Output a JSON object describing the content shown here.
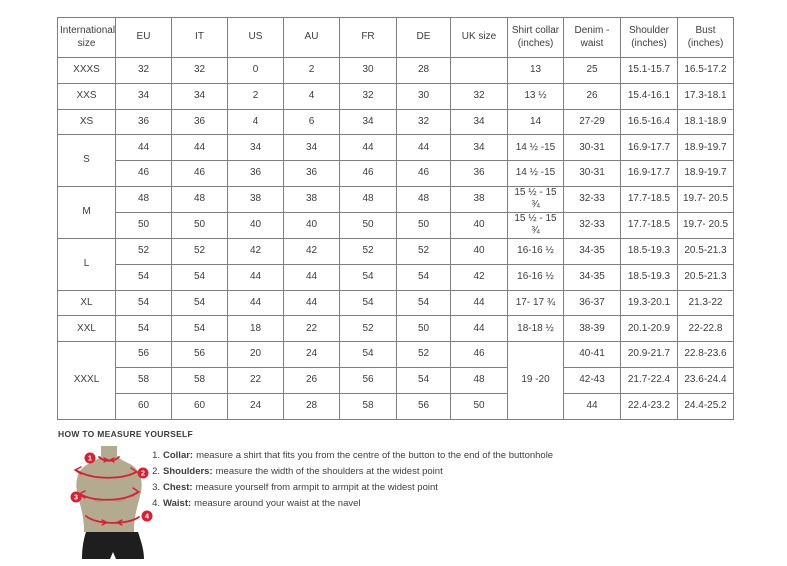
{
  "colors": {
    "accent_red": "#da1f33",
    "mannequin_tan": "#b3ab90",
    "shorts_black": "#1e1e1e",
    "table_border": "#7f7f7f",
    "text": "#3d3d3d"
  },
  "table": {
    "headers": [
      "International size",
      "EU",
      "IT",
      "US",
      "AU",
      "FR",
      "DE",
      "UK size",
      "Shirt collar (inches)",
      "Denim - waist",
      "Shoulder (inches)",
      "Bust (inches)"
    ],
    "rows": [
      {
        "cells": [
          {
            "t": "XXXS"
          },
          {
            "t": "32"
          },
          {
            "t": "32"
          },
          {
            "t": "0"
          },
          {
            "t": "2"
          },
          {
            "t": "30"
          },
          {
            "t": "28"
          },
          {
            "t": ""
          },
          {
            "t": "13"
          },
          {
            "t": "25"
          },
          {
            "t": "15.1-15.7"
          },
          {
            "t": "16.5-17.2"
          }
        ]
      },
      {
        "cells": [
          {
            "t": "XXS"
          },
          {
            "t": "34"
          },
          {
            "t": "34"
          },
          {
            "t": "2"
          },
          {
            "t": "4"
          },
          {
            "t": "32"
          },
          {
            "t": "30"
          },
          {
            "t": "32"
          },
          {
            "t": "13 ½"
          },
          {
            "t": "26"
          },
          {
            "t": "15.4-16.1"
          },
          {
            "t": "17.3-18.1"
          }
        ]
      },
      {
        "cells": [
          {
            "t": "XS"
          },
          {
            "t": "36"
          },
          {
            "t": "36"
          },
          {
            "t": "4"
          },
          {
            "t": "6"
          },
          {
            "t": "34"
          },
          {
            "t": "32"
          },
          {
            "t": "34"
          },
          {
            "t": "14"
          },
          {
            "t": "27-29"
          },
          {
            "t": "16.5-16.4"
          },
          {
            "t": "18.1-18.9"
          }
        ]
      },
      {
        "cells": [
          {
            "t": "S",
            "rs": 2
          },
          {
            "t": "44"
          },
          {
            "t": "44"
          },
          {
            "t": "34"
          },
          {
            "t": "34"
          },
          {
            "t": "44"
          },
          {
            "t": "44"
          },
          {
            "t": "34"
          },
          {
            "t": "14 ½ -15"
          },
          {
            "t": "30-31"
          },
          {
            "t": "16.9-17.7"
          },
          {
            "t": "18.9-19.7"
          }
        ]
      },
      {
        "cells": [
          {
            "t": "46"
          },
          {
            "t": "46"
          },
          {
            "t": "36"
          },
          {
            "t": "36"
          },
          {
            "t": "46"
          },
          {
            "t": "46"
          },
          {
            "t": "36"
          },
          {
            "t": "14 ½ -15"
          },
          {
            "t": "30-31"
          },
          {
            "t": "16.9-17.7"
          },
          {
            "t": "18.9-19.7"
          }
        ]
      },
      {
        "cells": [
          {
            "t": "M",
            "rs": 2
          },
          {
            "t": "48"
          },
          {
            "t": "48"
          },
          {
            "t": "38"
          },
          {
            "t": "38"
          },
          {
            "t": "48"
          },
          {
            "t": "48"
          },
          {
            "t": "38"
          },
          {
            "t": "15 ½ - 15 ¾"
          },
          {
            "t": "32-33"
          },
          {
            "t": "17.7-18.5"
          },
          {
            "t": "19.7- 20.5"
          }
        ]
      },
      {
        "cells": [
          {
            "t": "50"
          },
          {
            "t": "50"
          },
          {
            "t": "40"
          },
          {
            "t": "40"
          },
          {
            "t": "50"
          },
          {
            "t": "50"
          },
          {
            "t": "40"
          },
          {
            "t": "15 ½ - 15 ¾"
          },
          {
            "t": "32-33"
          },
          {
            "t": "17.7-18.5"
          },
          {
            "t": "19.7- 20.5"
          }
        ]
      },
      {
        "cells": [
          {
            "t": "L",
            "rs": 2
          },
          {
            "t": "52"
          },
          {
            "t": "52"
          },
          {
            "t": "42"
          },
          {
            "t": "42"
          },
          {
            "t": "52"
          },
          {
            "t": "52"
          },
          {
            "t": "40"
          },
          {
            "t": "16-16 ½"
          },
          {
            "t": "34-35"
          },
          {
            "t": "18.5-19.3"
          },
          {
            "t": "20.5-21.3"
          }
        ]
      },
      {
        "cells": [
          {
            "t": "54"
          },
          {
            "t": "54"
          },
          {
            "t": "44"
          },
          {
            "t": "44"
          },
          {
            "t": "54"
          },
          {
            "t": "54"
          },
          {
            "t": "42"
          },
          {
            "t": "16-16 ½"
          },
          {
            "t": "34-35"
          },
          {
            "t": "18.5-19.3"
          },
          {
            "t": "20.5-21.3"
          }
        ]
      },
      {
        "cells": [
          {
            "t": "XL"
          },
          {
            "t": "54"
          },
          {
            "t": "54"
          },
          {
            "t": "44"
          },
          {
            "t": "44"
          },
          {
            "t": "54"
          },
          {
            "t": "54"
          },
          {
            "t": "44"
          },
          {
            "t": "17- 17 ¾"
          },
          {
            "t": "36-37"
          },
          {
            "t": "19.3-20.1"
          },
          {
            "t": "21.3-22"
          }
        ]
      },
      {
        "cells": [
          {
            "t": "XXL"
          },
          {
            "t": "54"
          },
          {
            "t": "54"
          },
          {
            "t": "18"
          },
          {
            "t": "22"
          },
          {
            "t": "52"
          },
          {
            "t": "50"
          },
          {
            "t": "44"
          },
          {
            "t": "18-18 ½"
          },
          {
            "t": "38-39"
          },
          {
            "t": "20.1-20.9"
          },
          {
            "t": "22-22.8"
          }
        ]
      },
      {
        "cells": [
          {
            "t": "XXXL",
            "rs": 3
          },
          {
            "t": "56"
          },
          {
            "t": "56"
          },
          {
            "t": "20"
          },
          {
            "t": "24"
          },
          {
            "t": "54"
          },
          {
            "t": "52"
          },
          {
            "t": "46"
          },
          {
            "t": "19 -20",
            "rs": 3
          },
          {
            "t": "40-41"
          },
          {
            "t": "20.9-21.7"
          },
          {
            "t": "22.8-23.6"
          }
        ]
      },
      {
        "cells": [
          {
            "t": "58"
          },
          {
            "t": "58"
          },
          {
            "t": "22"
          },
          {
            "t": "26"
          },
          {
            "t": "56"
          },
          {
            "t": "54"
          },
          {
            "t": "48"
          },
          {
            "t": "42-43"
          },
          {
            "t": "21.7-22.4"
          },
          {
            "t": "23.6-24.4"
          }
        ]
      },
      {
        "cells": [
          {
            "t": "60"
          },
          {
            "t": "60"
          },
          {
            "t": "24"
          },
          {
            "t": "28"
          },
          {
            "t": "58"
          },
          {
            "t": "56"
          },
          {
            "t": "50"
          },
          {
            "t": "44"
          },
          {
            "t": "22.4-23.2"
          },
          {
            "t": "24.4-25.2"
          }
        ]
      }
    ]
  },
  "measure": {
    "title": "HOW TO MEASURE YOURSELF",
    "items": [
      {
        "num": "1.",
        "label": "Collar:",
        "text": "measure a shirt that fits you from the centre of the button to the end of the buttonhole"
      },
      {
        "num": "2.",
        "label": "Shoulders:",
        "text": "measure the width of the shoulders at the widest point"
      },
      {
        "num": "3.",
        "label": "Chest:",
        "text": "measure yourself from armpit to armpit at the widest point"
      },
      {
        "num": "4.",
        "label": "Waist:",
        "text": "measure around your waist at the navel"
      }
    ]
  },
  "figure": {
    "markers": [
      "1",
      "2",
      "3",
      "4"
    ]
  }
}
